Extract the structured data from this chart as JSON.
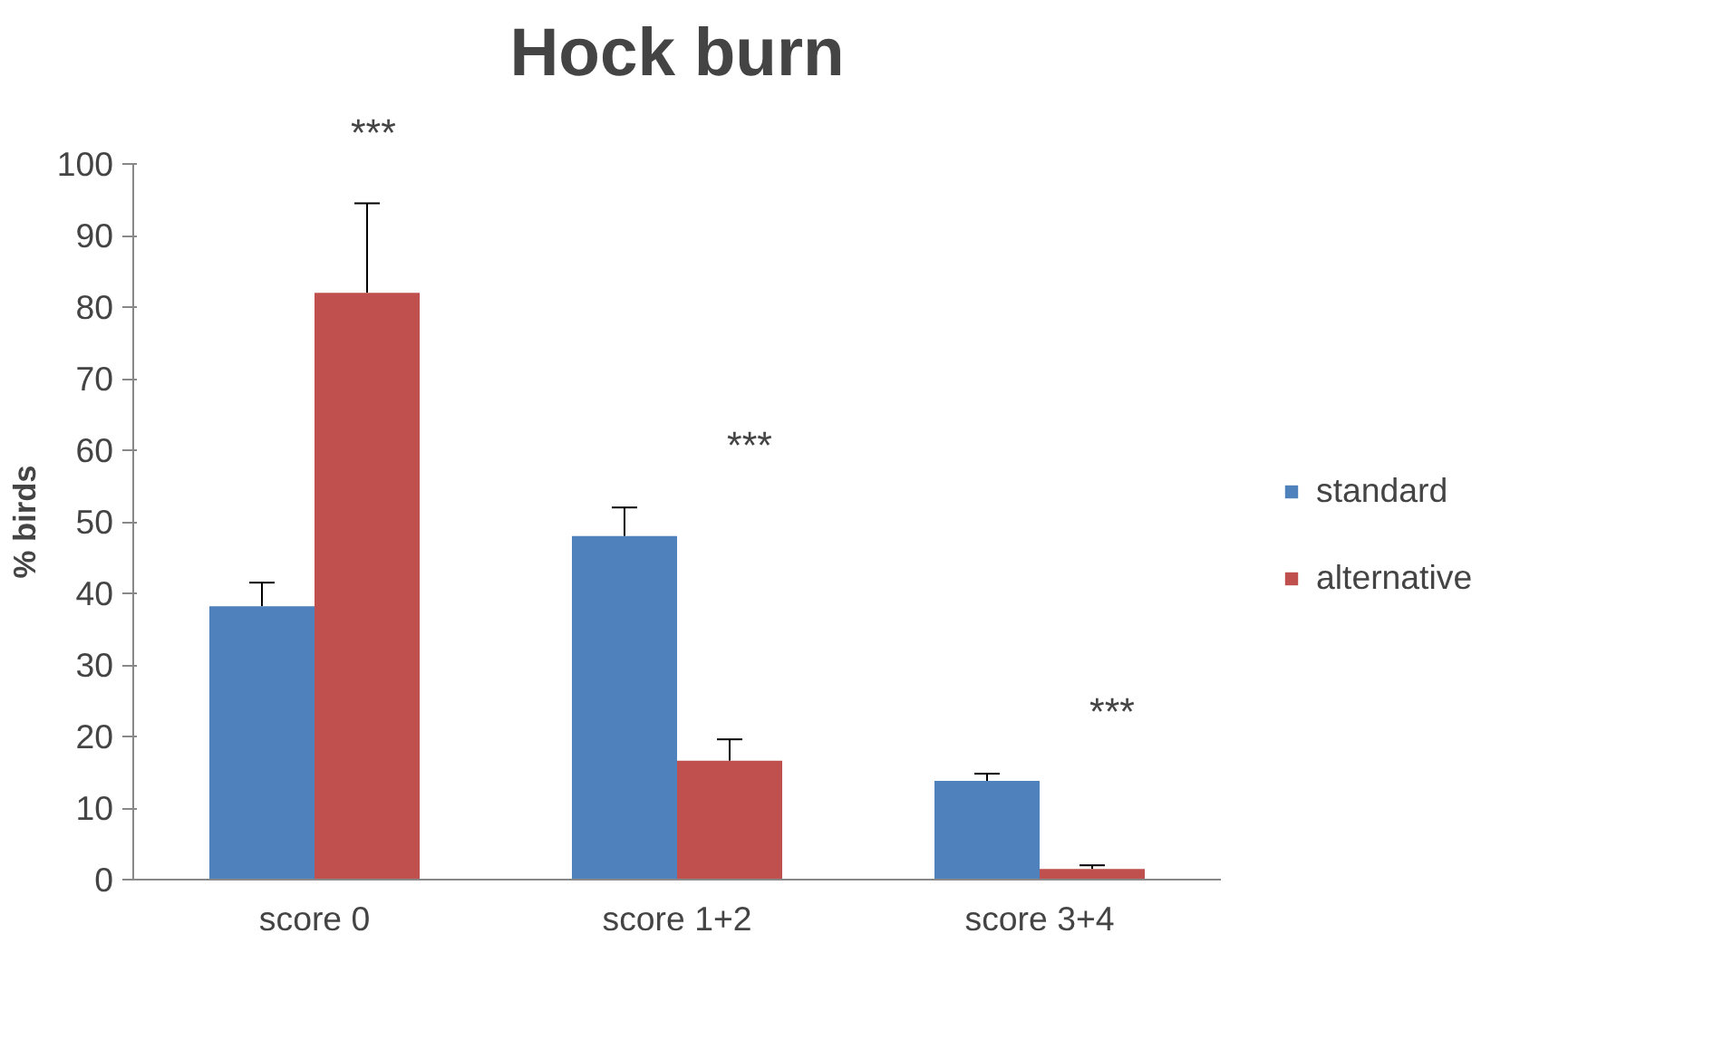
{
  "chart_data": {
    "type": "bar",
    "title": "Hock burn",
    "ylabel": "% birds",
    "categories": [
      "score 0",
      "score 1+2",
      "score 3+4"
    ],
    "series": [
      {
        "name": "standard",
        "color": "#4f81bd",
        "values": [
          38.2,
          48,
          13.8
        ],
        "errors": [
          [
            38.2,
            41.5
          ],
          [
            48,
            52
          ],
          [
            13.8,
            14.8
          ]
        ]
      },
      {
        "name": "alternative",
        "color": "#c0504d",
        "values": [
          82,
          16.6,
          1.5
        ],
        "errors": [
          [
            82,
            94.5
          ],
          [
            16.6,
            19.6
          ],
          [
            1.5,
            2
          ]
        ]
      }
    ],
    "ylim": [
      0,
      100
    ],
    "yticks": [
      0,
      10,
      20,
      30,
      40,
      50,
      60,
      70,
      80,
      90,
      100
    ],
    "grid": false,
    "legend": "right",
    "annotations": [
      "***",
      "***",
      "***"
    ]
  }
}
